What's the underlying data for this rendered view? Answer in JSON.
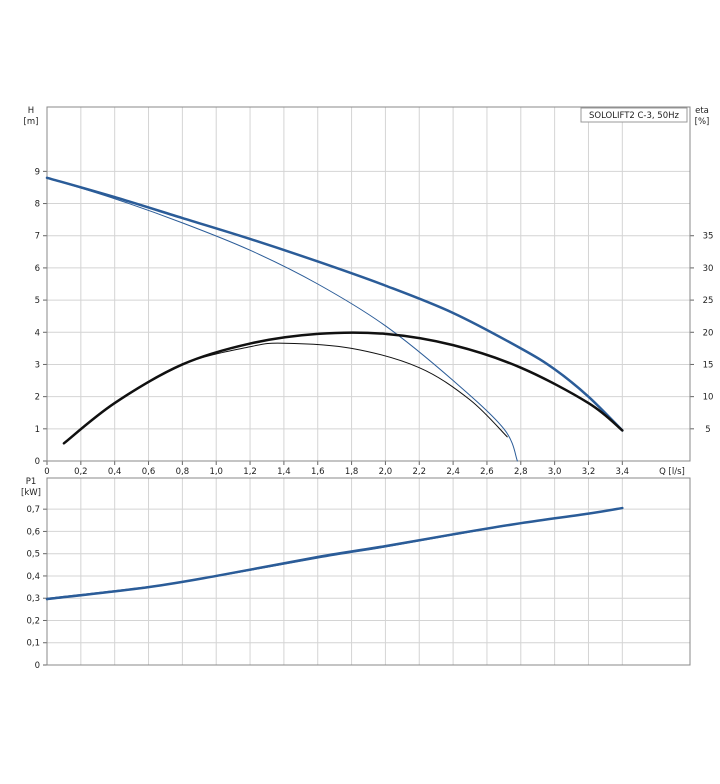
{
  "chart_data": [
    {
      "type": "line",
      "title": "SOLOLIFT2 C-3, 50Hz",
      "xlabel": "Q [l/s]",
      "ylabel": "H",
      "y_unit": "[m]",
      "y2label": "eta",
      "y2_unit": "[%]",
      "xlim": [
        0,
        3.8
      ],
      "ylim": [
        0,
        11
      ],
      "y2lim": [
        0,
        55
      ],
      "grid": true,
      "xticks": [
        0,
        {
          "value": 0.2,
          "label": "0,2"
        },
        {
          "value": 0.4,
          "label": "0,4"
        },
        {
          "value": 0.6,
          "label": "0,6"
        },
        {
          "value": 0.8,
          "label": "0,8"
        },
        {
          "value": 1.0,
          "label": "1,0"
        },
        {
          "value": 1.2,
          "label": "1,2"
        },
        {
          "value": 1.4,
          "label": "1,4"
        },
        {
          "value": 1.6,
          "label": "1,6"
        },
        {
          "value": 1.8,
          "label": "1,8"
        },
        {
          "value": 2.0,
          "label": "2,0"
        },
        {
          "value": 2.2,
          "label": "2,2"
        },
        {
          "value": 2.4,
          "label": "2,4"
        },
        {
          "value": 2.6,
          "label": "2,6"
        },
        {
          "value": 2.8,
          "label": "2,8"
        },
        {
          "value": 3.0,
          "label": "3,0"
        },
        {
          "value": 3.2,
          "label": "3,2"
        },
        {
          "value": 3.4,
          "label": "3,4"
        }
      ],
      "yticks": [
        0,
        1,
        2,
        3,
        4,
        5,
        6,
        7,
        8,
        9
      ],
      "y2ticks": [
        5,
        10,
        15,
        20,
        25,
        30,
        35
      ],
      "series": [
        {
          "color": "#2b5c98",
          "line_width": 2.5,
          "x": [
            0,
            0.4,
            0.8,
            1.2,
            1.6,
            2.0,
            2.4,
            2.8,
            3.0,
            3.2,
            3.4
          ],
          "values": [
            8.8,
            8.2,
            7.55,
            6.9,
            6.2,
            5.45,
            4.6,
            3.5,
            2.85,
            2.0,
            0.95
          ]
        },
        {
          "color": "#2b5c98",
          "line_width": 1,
          "x": [
            0,
            0.4,
            0.8,
            1.2,
            1.6,
            2.0,
            2.4,
            2.7,
            2.78
          ],
          "values": [
            8.8,
            8.15,
            7.4,
            6.55,
            5.5,
            4.2,
            2.5,
            1.0,
            0
          ]
        },
        {
          "color": "#111111",
          "line_width": 2.5,
          "axis": "y2",
          "x": [
            0.1,
            0.4,
            0.8,
            1.2,
            1.6,
            2.0,
            2.4,
            2.8,
            3.2,
            3.4
          ],
          "values": [
            2.75,
            9,
            15,
            18.25,
            19.75,
            19.75,
            18,
            14.5,
            9,
            4.75
          ]
        },
        {
          "color": "#111111",
          "line_width": 1,
          "axis": "y2",
          "x": [
            0.1,
            0.4,
            0.8,
            1.2,
            1.4,
            1.8,
            2.2,
            2.5,
            2.72
          ],
          "values": [
            2.75,
            9,
            15,
            17.75,
            18.3,
            17.5,
            14.5,
            9.5,
            3.75
          ]
        }
      ]
    },
    {
      "type": "line",
      "ylabel": "P1",
      "y_unit": "[kW]",
      "xlim": [
        0,
        3.8
      ],
      "ylim": [
        0,
        0.84
      ],
      "grid": true,
      "yticks": [
        0,
        {
          "value": 0.1,
          "label": "0,1"
        },
        {
          "value": 0.2,
          "label": "0,2"
        },
        {
          "value": 0.3,
          "label": "0,3"
        },
        {
          "value": 0.4,
          "label": "0,4"
        },
        {
          "value": 0.5,
          "label": "0,5"
        },
        {
          "value": 0.6,
          "label": "0,6"
        },
        {
          "value": 0.7,
          "label": "0,7"
        }
      ],
      "series": [
        {
          "color": "#2b5c98",
          "line_width": 2.5,
          "x": [
            0,
            0.6,
            1.0,
            1.6,
            2.0,
            2.4,
            2.8,
            3.2,
            3.4
          ],
          "values": [
            0.296,
            0.35,
            0.4,
            0.485,
            0.534,
            0.587,
            0.637,
            0.68,
            0.705
          ]
        },
        {
          "color": "#2b5c98",
          "line_width": 1,
          "x": [
            0,
            0.6,
            1.0,
            1.6,
            2.0,
            2.4,
            2.8,
            3.2,
            3.4
          ],
          "values": [
            0.3,
            0.352,
            0.398,
            0.48,
            0.53,
            0.584,
            0.636,
            0.68,
            0.705
          ]
        }
      ]
    }
  ]
}
